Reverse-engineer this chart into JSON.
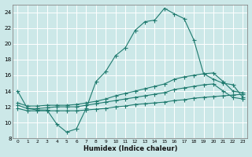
{
  "xlabel": "Humidex (Indice chaleur)",
  "bg_color": "#cce8e8",
  "grid_color": "#b0d4d4",
  "line_color": "#1e7a6e",
  "xlim": [
    -0.5,
    23.5
  ],
  "ylim": [
    8,
    25
  ],
  "yticks": [
    8,
    10,
    12,
    14,
    16,
    18,
    20,
    22,
    24
  ],
  "xticks": [
    0,
    1,
    2,
    3,
    4,
    5,
    6,
    7,
    8,
    9,
    10,
    11,
    12,
    13,
    14,
    15,
    16,
    17,
    18,
    19,
    20,
    21,
    22,
    23
  ],
  "line1_x": [
    0,
    1,
    2,
    3,
    4,
    5,
    6,
    7,
    8,
    9,
    10,
    11,
    12,
    13,
    14,
    15,
    16,
    17,
    18,
    19,
    20,
    21,
    22,
    23
  ],
  "line1_y": [
    14.0,
    11.8,
    11.6,
    11.6,
    9.8,
    8.8,
    9.2,
    11.8,
    15.2,
    16.5,
    18.5,
    19.5,
    21.7,
    22.8,
    23.0,
    24.5,
    23.8,
    23.2,
    20.5,
    16.2,
    15.5,
    15.0,
    14.8,
    13.2
  ],
  "line2_x": [
    0,
    1,
    2,
    3,
    4,
    5,
    6,
    7,
    8,
    9,
    10,
    11,
    12,
    13,
    14,
    15,
    16,
    17,
    18,
    19,
    20,
    21,
    22,
    23
  ],
  "line2_y": [
    12.5,
    12.1,
    12.1,
    12.2,
    12.2,
    12.2,
    12.3,
    12.5,
    12.7,
    13.0,
    13.4,
    13.7,
    14.0,
    14.3,
    14.6,
    14.9,
    15.5,
    15.8,
    16.0,
    16.2,
    16.3,
    15.2,
    14.0,
    13.8
  ],
  "line3_x": [
    0,
    1,
    2,
    3,
    4,
    5,
    6,
    7,
    8,
    9,
    10,
    11,
    12,
    13,
    14,
    15,
    16,
    17,
    18,
    19,
    20,
    21,
    22,
    23
  ],
  "line3_y": [
    12.2,
    11.8,
    11.8,
    11.9,
    12.0,
    12.0,
    12.0,
    12.2,
    12.4,
    12.6,
    12.8,
    13.0,
    13.2,
    13.4,
    13.6,
    13.8,
    14.2,
    14.4,
    14.6,
    14.8,
    14.9,
    14.0,
    13.2,
    13.0
  ],
  "line4_x": [
    0,
    1,
    2,
    3,
    4,
    5,
    6,
    7,
    8,
    9,
    10,
    11,
    12,
    13,
    14,
    15,
    16,
    17,
    18,
    19,
    20,
    21,
    22,
    23
  ],
  "line4_y": [
    11.8,
    11.5,
    11.5,
    11.5,
    11.5,
    11.5,
    11.5,
    11.6,
    11.7,
    11.8,
    12.0,
    12.1,
    12.3,
    12.4,
    12.5,
    12.6,
    12.8,
    12.9,
    13.1,
    13.2,
    13.3,
    13.4,
    13.5,
    13.6
  ]
}
